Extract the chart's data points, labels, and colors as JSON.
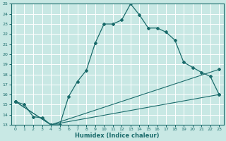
{
  "xlabel": "Humidex (Indice chaleur)",
  "xlim": [
    -0.5,
    23.5
  ],
  "ylim": [
    13,
    25
  ],
  "yticks": [
    13,
    14,
    15,
    16,
    17,
    18,
    19,
    20,
    21,
    22,
    23,
    24,
    25
  ],
  "xticks": [
    0,
    1,
    2,
    3,
    4,
    5,
    6,
    7,
    8,
    9,
    10,
    11,
    12,
    13,
    14,
    15,
    16,
    17,
    18,
    19,
    20,
    21,
    22,
    23
  ],
  "background_color": "#c8e8e4",
  "grid_color": "#ffffff",
  "line_color": "#1a6b6b",
  "line1_x": [
    0,
    1,
    2,
    3,
    4,
    5,
    6,
    7,
    8,
    9,
    10,
    11,
    12,
    13,
    14,
    15,
    16,
    17,
    18,
    19,
    20,
    21,
    22,
    23
  ],
  "line1_y": [
    15.3,
    15.0,
    13.8,
    13.7,
    13.0,
    13.0,
    15.8,
    17.3,
    18.4,
    21.1,
    23.0,
    23.0,
    23.4,
    25.0,
    23.9,
    22.6,
    22.6,
    22.2,
    21.4,
    19.2,
    18.7,
    18.2,
    17.8,
    16.0
  ],
  "line2_x": [
    0,
    4,
    23
  ],
  "line2_y": [
    15.3,
    13.0,
    16.0
  ],
  "line3_x": [
    0,
    4,
    23
  ],
  "line3_y": [
    15.3,
    13.0,
    18.5
  ]
}
